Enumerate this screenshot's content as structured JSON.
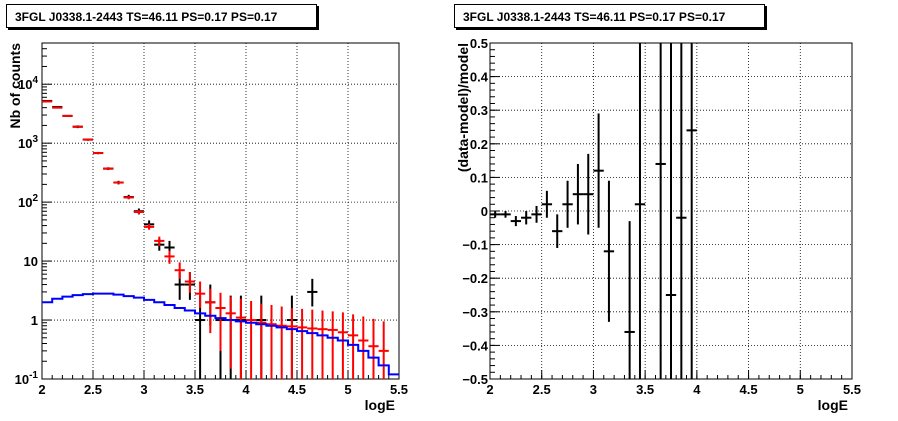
{
  "chart_data": [
    {
      "type": "step+errorbar",
      "title": "3FGL J0338.1-2443 TS=46.11 PS=0.17 PS=0.17",
      "xlabel": "logE",
      "ylabel": "Nb of counts",
      "xlim": [
        2,
        5.5
      ],
      "ylim": [
        0.1,
        50000
      ],
      "log_y": true,
      "grid": true,
      "x_ticks": [
        "2",
        "2.5",
        "3",
        "3.5",
        "4",
        "4.5",
        "5",
        "5.5"
      ],
      "y_ticks": [
        {
          "v": 0.1,
          "label": "10",
          "exp": "-1"
        },
        {
          "v": 1,
          "label": "1",
          "exp": ""
        },
        {
          "v": 10,
          "label": "10",
          "exp": ""
        },
        {
          "v": 100,
          "label": "10",
          "exp": "2"
        },
        {
          "v": 1000,
          "label": "10",
          "exp": "3"
        },
        {
          "v": 10000,
          "label": "10",
          "exp": "4"
        }
      ],
      "colors": {
        "data": "#000000",
        "model": "#ff0000",
        "source": "#0000ff"
      },
      "series": [
        {
          "name": "data",
          "color": "#000000",
          "points": [
            {
              "x": 2.05,
              "y": 5200,
              "lo": 5100,
              "hi": 5300
            },
            {
              "x": 2.15,
              "y": 4100,
              "lo": 4000,
              "hi": 4200
            },
            {
              "x": 2.25,
              "y": 2900,
              "lo": 2800,
              "hi": 3000
            },
            {
              "x": 2.35,
              "y": 1900,
              "lo": 1800,
              "hi": 2000
            },
            {
              "x": 2.45,
              "y": 1150,
              "lo": 1100,
              "hi": 1200
            },
            {
              "x": 2.55,
              "y": 680,
              "lo": 650,
              "hi": 710
            },
            {
              "x": 2.65,
              "y": 370,
              "lo": 350,
              "hi": 390
            },
            {
              "x": 2.75,
              "y": 215,
              "lo": 200,
              "hi": 230
            },
            {
              "x": 2.85,
              "y": 122,
              "lo": 112,
              "hi": 133
            },
            {
              "x": 2.95,
              "y": 70,
              "lo": 62,
              "hi": 78
            },
            {
              "x": 3.05,
              "y": 42,
              "lo": 36,
              "hi": 49
            },
            {
              "x": 3.15,
              "y": 19,
              "lo": 15,
              "hi": 24
            },
            {
              "x": 3.25,
              "y": 17,
              "lo": 13,
              "hi": 22
            },
            {
              "x": 3.35,
              "y": 4,
              "lo": 2.2,
              "hi": 6.5
            },
            {
              "x": 3.45,
              "y": 4,
              "lo": 2.2,
              "hi": 6.5
            },
            {
              "x": 3.55,
              "y": 1,
              "lo": 0.1,
              "hi": 2.6
            },
            {
              "x": 3.65,
              "y": 2,
              "lo": 0.8,
              "hi": 4
            },
            {
              "x": 3.75,
              "y": 1,
              "lo": 0.1,
              "hi": 2.6
            },
            {
              "x": 3.85,
              "y": 1,
              "lo": 0.1,
              "hi": 2.6
            },
            {
              "x": 3.95,
              "y": 1,
              "lo": 0.1,
              "hi": 2.6
            },
            {
              "x": 4.15,
              "y": 1,
              "lo": 0.1,
              "hi": 2.6
            },
            {
              "x": 4.45,
              "y": 1,
              "lo": 0.1,
              "hi": 2.6
            },
            {
              "x": 4.65,
              "y": 3,
              "lo": 1.7,
              "hi": 5
            }
          ]
        },
        {
          "name": "model",
          "color": "#ff0000",
          "points": [
            {
              "x": 2.05,
              "y": 5100,
              "lo": 5000,
              "hi": 5200
            },
            {
              "x": 2.15,
              "y": 4000,
              "lo": 3950,
              "hi": 4050
            },
            {
              "x": 2.25,
              "y": 2900,
              "lo": 2850,
              "hi": 2950
            },
            {
              "x": 2.35,
              "y": 1900,
              "lo": 1850,
              "hi": 1950
            },
            {
              "x": 2.45,
              "y": 1150,
              "lo": 1120,
              "hi": 1180
            },
            {
              "x": 2.55,
              "y": 680,
              "lo": 660,
              "hi": 700
            },
            {
              "x": 2.65,
              "y": 370,
              "lo": 355,
              "hi": 385
            },
            {
              "x": 2.75,
              "y": 215,
              "lo": 205,
              "hi": 225
            },
            {
              "x": 2.85,
              "y": 120,
              "lo": 113,
              "hi": 127
            },
            {
              "x": 2.95,
              "y": 68,
              "lo": 63,
              "hi": 73
            },
            {
              "x": 3.05,
              "y": 38,
              "lo": 34,
              "hi": 43
            },
            {
              "x": 3.15,
              "y": 22,
              "lo": 18,
              "hi": 26
            },
            {
              "x": 3.25,
              "y": 12,
              "lo": 9,
              "hi": 15
            },
            {
              "x": 3.35,
              "y": 7,
              "lo": 5,
              "hi": 9.5
            },
            {
              "x": 3.45,
              "y": 4.5,
              "lo": 2.9,
              "hi": 6.5
            },
            {
              "x": 3.55,
              "y": 2.8,
              "lo": 1.6,
              "hi": 4.5
            },
            {
              "x": 3.65,
              "y": 2,
              "lo": 0.6,
              "hi": 3.4
            },
            {
              "x": 3.75,
              "y": 1.6,
              "lo": 0.3,
              "hi": 2.9
            },
            {
              "x": 3.85,
              "y": 1.3,
              "lo": 0.15,
              "hi": 2.5
            },
            {
              "x": 3.95,
              "y": 1.1,
              "lo": 0.1,
              "hi": 2.3
            },
            {
              "x": 4.05,
              "y": 1.0,
              "lo": 0.1,
              "hi": 2.1
            },
            {
              "x": 4.15,
              "y": 0.9,
              "lo": 0.1,
              "hi": 1.9
            },
            {
              "x": 4.25,
              "y": 0.85,
              "lo": 0.1,
              "hi": 1.8
            },
            {
              "x": 4.35,
              "y": 0.8,
              "lo": 0.1,
              "hi": 1.7
            },
            {
              "x": 4.45,
              "y": 0.78,
              "lo": 0.1,
              "hi": 1.6
            },
            {
              "x": 4.55,
              "y": 0.75,
              "lo": 0.1,
              "hi": 1.55
            },
            {
              "x": 4.65,
              "y": 0.72,
              "lo": 0.1,
              "hi": 1.5
            },
            {
              "x": 4.75,
              "y": 0.7,
              "lo": 0.1,
              "hi": 1.45
            },
            {
              "x": 4.85,
              "y": 0.68,
              "lo": 0.1,
              "hi": 1.4
            },
            {
              "x": 4.95,
              "y": 0.62,
              "lo": 0.1,
              "hi": 1.35
            },
            {
              "x": 5.05,
              "y": 0.55,
              "lo": 0.1,
              "hi": 1.25
            },
            {
              "x": 5.15,
              "y": 0.45,
              "lo": 0.1,
              "hi": 1.15
            },
            {
              "x": 5.25,
              "y": 0.36,
              "lo": 0.1,
              "hi": 1.05
            },
            {
              "x": 5.35,
              "y": 0.3,
              "lo": 0.1,
              "hi": 0.95
            }
          ]
        },
        {
          "name": "source",
          "color": "#0000ff",
          "step": [
            {
              "x0": 2.0,
              "x1": 2.1,
              "y": 2.0
            },
            {
              "x0": 2.1,
              "x1": 2.2,
              "y": 2.3
            },
            {
              "x0": 2.2,
              "x1": 2.3,
              "y": 2.5
            },
            {
              "x0": 2.3,
              "x1": 2.4,
              "y": 2.65
            },
            {
              "x0": 2.4,
              "x1": 2.5,
              "y": 2.75
            },
            {
              "x0": 2.5,
              "x1": 2.6,
              "y": 2.8
            },
            {
              "x0": 2.6,
              "x1": 2.7,
              "y": 2.8
            },
            {
              "x0": 2.7,
              "x1": 2.8,
              "y": 2.7
            },
            {
              "x0": 2.8,
              "x1": 2.9,
              "y": 2.55
            },
            {
              "x0": 2.9,
              "x1": 3.0,
              "y": 2.4
            },
            {
              "x0": 3.0,
              "x1": 3.1,
              "y": 2.2
            },
            {
              "x0": 3.1,
              "x1": 3.2,
              "y": 2.0
            },
            {
              "x0": 3.2,
              "x1": 3.3,
              "y": 1.8
            },
            {
              "x0": 3.3,
              "x1": 3.4,
              "y": 1.6
            },
            {
              "x0": 3.4,
              "x1": 3.5,
              "y": 1.45
            },
            {
              "x0": 3.5,
              "x1": 3.6,
              "y": 1.3
            },
            {
              "x0": 3.6,
              "x1": 3.7,
              "y": 1.18
            },
            {
              "x0": 3.7,
              "x1": 3.8,
              "y": 1.08
            },
            {
              "x0": 3.8,
              "x1": 3.9,
              "y": 1.0
            },
            {
              "x0": 3.9,
              "x1": 4.0,
              "y": 0.95
            },
            {
              "x0": 4.0,
              "x1": 4.1,
              "y": 0.9
            },
            {
              "x0": 4.1,
              "x1": 4.2,
              "y": 0.85
            },
            {
              "x0": 4.2,
              "x1": 4.3,
              "y": 0.8
            },
            {
              "x0": 4.3,
              "x1": 4.4,
              "y": 0.75
            },
            {
              "x0": 4.4,
              "x1": 4.5,
              "y": 0.7
            },
            {
              "x0": 4.5,
              "x1": 4.6,
              "y": 0.65
            },
            {
              "x0": 4.6,
              "x1": 4.7,
              "y": 0.6
            },
            {
              "x0": 4.7,
              "x1": 4.8,
              "y": 0.55
            },
            {
              "x0": 4.8,
              "x1": 4.9,
              "y": 0.5
            },
            {
              "x0": 4.9,
              "x1": 5.0,
              "y": 0.45
            },
            {
              "x0": 5.0,
              "x1": 5.1,
              "y": 0.38
            },
            {
              "x0": 5.1,
              "x1": 5.2,
              "y": 0.3
            },
            {
              "x0": 5.2,
              "x1": 5.3,
              "y": 0.23
            },
            {
              "x0": 5.3,
              "x1": 5.4,
              "y": 0.17
            },
            {
              "x0": 5.4,
              "x1": 5.5,
              "y": 0.12
            }
          ]
        }
      ]
    },
    {
      "type": "errorbar",
      "title": "3FGL J0338.1-2443 TS=46.11 PS=0.17 PS=0.17",
      "xlabel": "logE",
      "ylabel": "(data-model)/model",
      "xlim": [
        2,
        5.5
      ],
      "ylim": [
        -0.5,
        0.5
      ],
      "grid": true,
      "x_ticks": [
        "2",
        "2.5",
        "3",
        "3.5",
        "4",
        "4.5",
        "5",
        "5.5"
      ],
      "y_ticks": [
        "−0.5",
        "−0.4",
        "−0.3",
        "−0.2",
        "−0.1",
        "0",
        "0.1",
        "0.2",
        "0.3",
        "0.4",
        "0.5"
      ],
      "series": [
        {
          "name": "residuals",
          "color": "#000000",
          "points": [
            {
              "x": 2.05,
              "y": -0.01,
              "lo": -0.02,
              "hi": 0.0
            },
            {
              "x": 2.15,
              "y": -0.01,
              "lo": -0.02,
              "hi": 0.0
            },
            {
              "x": 2.25,
              "y": -0.03,
              "lo": -0.045,
              "hi": -0.015
            },
            {
              "x": 2.35,
              "y": -0.02,
              "lo": -0.04,
              "hi": 0.0
            },
            {
              "x": 2.45,
              "y": -0.01,
              "lo": -0.035,
              "hi": 0.015
            },
            {
              "x": 2.55,
              "y": 0.02,
              "lo": -0.02,
              "hi": 0.06
            },
            {
              "x": 2.65,
              "y": -0.06,
              "lo": -0.11,
              "hi": -0.01
            },
            {
              "x": 2.75,
              "y": 0.02,
              "lo": -0.05,
              "hi": 0.09
            },
            {
              "x": 2.85,
              "y": 0.05,
              "lo": -0.04,
              "hi": 0.14
            },
            {
              "x": 2.95,
              "y": 0.05,
              "lo": -0.07,
              "hi": 0.17
            },
            {
              "x": 3.05,
              "y": 0.12,
              "lo": -0.05,
              "hi": 0.29
            },
            {
              "x": 3.15,
              "y": -0.12,
              "lo": -0.33,
              "hi": 0.09
            },
            {
              "x": 3.35,
              "y": -0.36,
              "lo": -0.5,
              "hi": -0.03
            },
            {
              "x": 3.45,
              "y": 0.02,
              "lo": -0.5,
              "hi": 0.5
            },
            {
              "x": 3.65,
              "y": 0.14,
              "lo": -0.5,
              "hi": 0.5
            },
            {
              "x": 3.75,
              "y": -0.25,
              "lo": -0.5,
              "hi": 0.5
            },
            {
              "x": 3.85,
              "y": -0.02,
              "lo": -0.5,
              "hi": 0.5
            },
            {
              "x": 3.95,
              "y": 0.24,
              "lo": -0.5,
              "hi": 0.5
            }
          ]
        }
      ]
    }
  ]
}
